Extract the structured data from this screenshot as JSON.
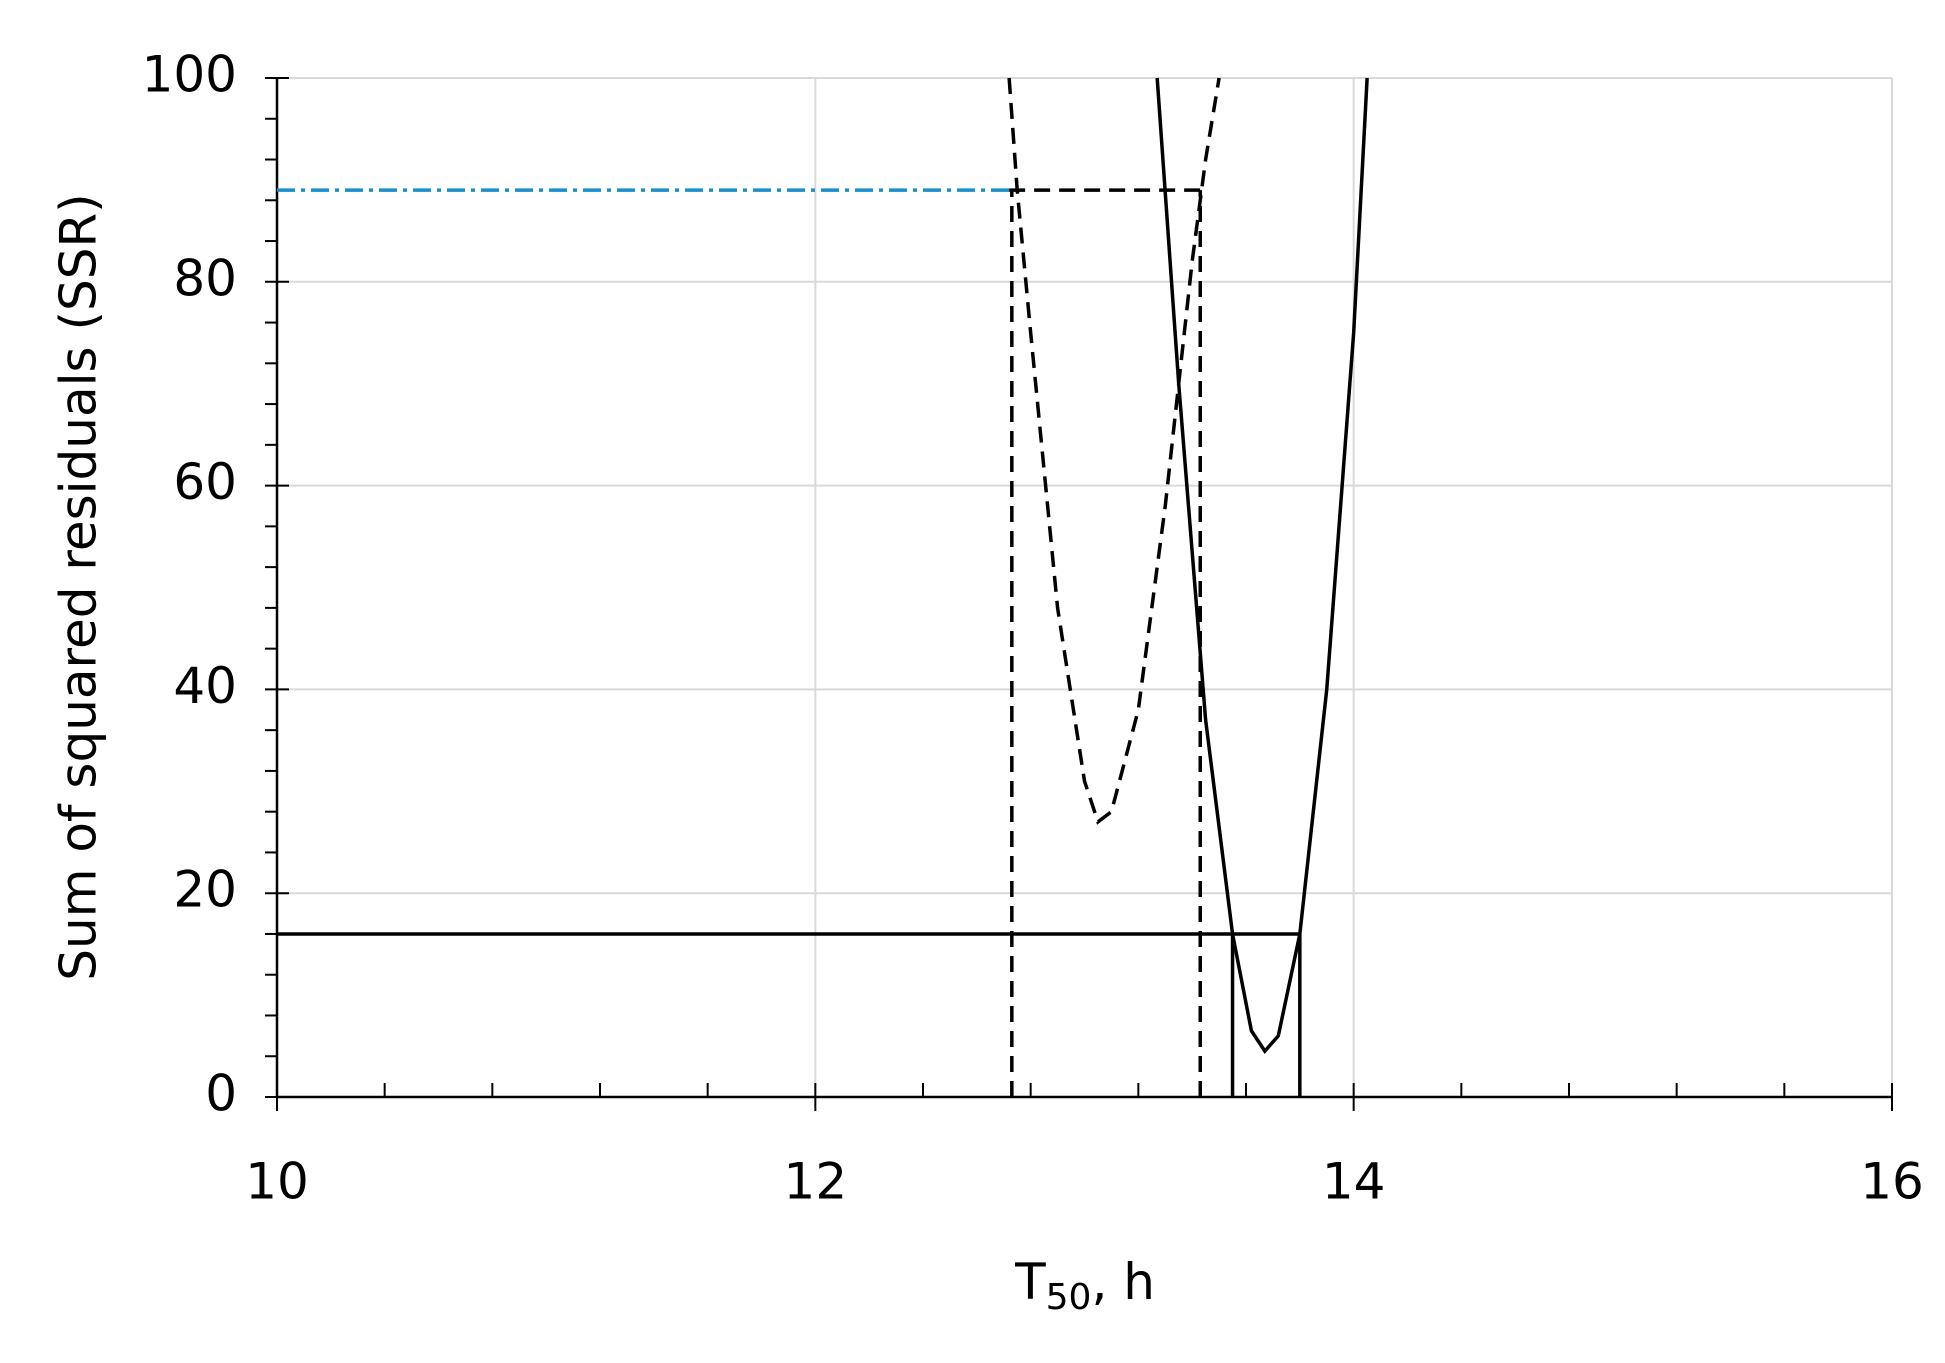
{
  "chart_data": {
    "type": "line",
    "xlabel": {
      "main": "T",
      "sub": "50",
      "rest": ", h"
    },
    "ylabel": "Sum of squared residuals (SSR)",
    "xlim": [
      10,
      16
    ],
    "ylim": [
      0,
      100
    ],
    "xticks": [
      10,
      12,
      14,
      16
    ],
    "yticks": [
      0,
      20,
      40,
      60,
      80,
      100
    ],
    "xminorticks": [
      10.4,
      10.8,
      11.2,
      11.6,
      12.4,
      12.8,
      13.2,
      13.6,
      14.4,
      14.8,
      15.2,
      15.6
    ],
    "yminorticks": [
      4,
      8,
      12,
      16,
      24,
      28,
      32,
      36,
      44,
      48,
      52,
      56,
      64,
      68,
      72,
      76,
      84,
      88,
      92,
      96
    ],
    "grid": true,
    "series": [
      {
        "color": "#000000",
        "style": "solid",
        "x": [
          13.27,
          13.35,
          13.45,
          13.55,
          13.62,
          13.67,
          13.72,
          13.8,
          13.9,
          14.0,
          14.05
        ],
        "values": [
          100,
          70,
          37,
          16,
          6.5,
          4.5,
          6,
          16,
          40,
          75,
          100
        ]
      },
      {
        "color": "#000000",
        "style": "dashed",
        "x": [
          12.72,
          12.75,
          12.8,
          12.9,
          13.0,
          13.05,
          13.1,
          13.2,
          13.3,
          13.4,
          13.45,
          13.5
        ],
        "values": [
          100,
          89,
          75,
          48,
          31,
          27,
          28,
          38,
          58,
          82,
          92,
          100
        ]
      },
      {
        "color": "#000000",
        "style": "solid",
        "x": [
          10,
          13.8
        ],
        "values": [
          16,
          16
        ]
      },
      {
        "color": "#000000",
        "style": "dashed",
        "x": [
          12.72,
          13.45
        ],
        "values": [
          89,
          89
        ]
      },
      {
        "color": "#1a8fc9",
        "style": "dashdot",
        "x": [
          10,
          12.72
        ],
        "values": [
          89,
          89
        ]
      },
      {
        "color": "#000000",
        "style": "dashed",
        "x": [
          12.73,
          12.73
        ],
        "values": [
          0,
          89
        ]
      },
      {
        "color": "#000000",
        "style": "dashed",
        "x": [
          13.43,
          13.43
        ],
        "values": [
          0,
          89
        ]
      },
      {
        "color": "#000000",
        "style": "solid",
        "x": [
          13.55,
          13.55
        ],
        "values": [
          0,
          16
        ]
      },
      {
        "color": "#000000",
        "style": "solid",
        "x": [
          13.8,
          13.8
        ],
        "values": [
          0,
          16
        ]
      }
    ]
  }
}
